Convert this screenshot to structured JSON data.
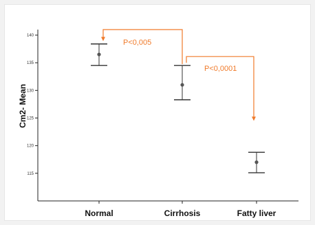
{
  "chart_data": {
    "type": "errorbar",
    "title": "",
    "xlabel": "",
    "ylabel": "Cm2- Mean",
    "ylim": [
      110,
      141
    ],
    "yticks": [
      "140",
      "135",
      "130",
      "125",
      "120",
      "115"
    ],
    "categories": [
      "Normal",
      "Cirrhosis",
      "Fatty liver"
    ],
    "series": [
      {
        "mean": [
          136.5,
          131.0,
          117.0
        ],
        "lower": [
          134.5,
          128.3,
          115.1
        ],
        "upper": [
          138.4,
          134.5,
          118.8
        ]
      }
    ],
    "annotations": [
      {
        "text": "P<0,005",
        "from": "Cirrhosis",
        "to": "Normal"
      },
      {
        "text": "P<0,0001",
        "from": "Cirrhosis",
        "to": "Fatty liver"
      }
    ],
    "colors": {
      "bars": "#333333",
      "annotation": "#f07a2a",
      "axis": "#222222"
    },
    "grid": false,
    "legend": "none"
  }
}
